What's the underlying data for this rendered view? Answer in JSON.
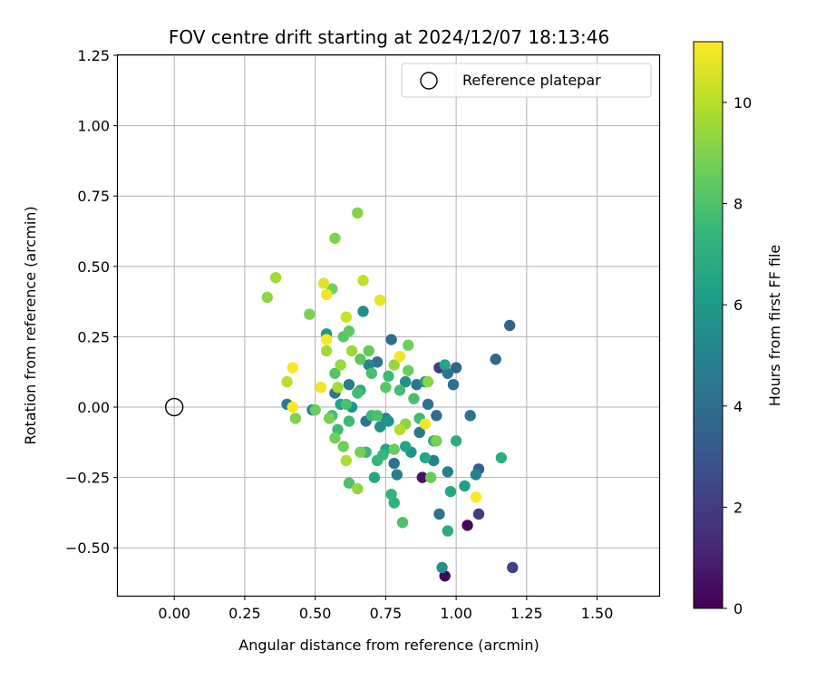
{
  "chart_data": {
    "type": "scatter",
    "title": "FOV centre drift starting at 2024/12/07 18:13:46",
    "xlabel": "Angular distance from reference (arcmin)",
    "ylabel": "Rotation from reference (arcmin)",
    "xlim": [
      -0.2,
      1.72
    ],
    "ylim": [
      -0.67,
      1.25
    ],
    "xticks": [
      "0.00",
      "0.25",
      "0.50",
      "0.75",
      "1.00",
      "1.25",
      "1.50"
    ],
    "xtick_values": [
      0,
      0.25,
      0.5,
      0.75,
      1.0,
      1.25,
      1.5
    ],
    "yticks": [
      "−0.50",
      "−0.25",
      "0.00",
      "0.25",
      "0.50",
      "0.75",
      "1.00",
      "1.25"
    ],
    "ytick_values": [
      -0.5,
      -0.25,
      0,
      0.25,
      0.5,
      0.75,
      1.0,
      1.25
    ],
    "grid": true,
    "legend": {
      "placement": "top-right",
      "entries": [
        "Reference platepar"
      ]
    },
    "reference": {
      "x": 0.0,
      "y": 0.0
    },
    "colorbar": {
      "label": "Hours from first FF file",
      "range": [
        0,
        11.2
      ],
      "ticks": [
        "0",
        "2",
        "4",
        "6",
        "8",
        "10"
      ],
      "tick_values": [
        0,
        2,
        4,
        6,
        8,
        10
      ],
      "colormap": [
        "#440154",
        "#482878",
        "#3e4989",
        "#31688e",
        "#26828e",
        "#1f9e89",
        "#35b779",
        "#6ece58",
        "#b5de2b",
        "#fde725"
      ]
    },
    "series": [
      {
        "points": [
          {
            "x": 0.96,
            "y": -0.6,
            "t": 0.2
          },
          {
            "x": 1.04,
            "y": -0.42,
            "t": 0.3
          },
          {
            "x": 0.88,
            "y": -0.25,
            "t": 0.5
          },
          {
            "x": 1.2,
            "y": -0.57,
            "t": 2.2
          },
          {
            "x": 1.08,
            "y": -0.38,
            "t": 2.0
          },
          {
            "x": 0.94,
            "y": 0.14,
            "t": 2.0
          },
          {
            "x": 1.08,
            "y": -0.22,
            "t": 3.4
          },
          {
            "x": 1.19,
            "y": 0.29,
            "t": 3.6
          },
          {
            "x": 1.14,
            "y": 0.17,
            "t": 3.7
          },
          {
            "x": 1.0,
            "y": 0.14,
            "t": 3.6
          },
          {
            "x": 0.99,
            "y": 0.08,
            "t": 4.0
          },
          {
            "x": 1.05,
            "y": -0.03,
            "t": 4.2
          },
          {
            "x": 0.94,
            "y": -0.38,
            "t": 4.2
          },
          {
            "x": 0.97,
            "y": 0.12,
            "t": 4.3
          },
          {
            "x": 0.9,
            "y": 0.01,
            "t": 4.2
          },
          {
            "x": 0.93,
            "y": -0.03,
            "t": 4.0
          },
          {
            "x": 0.87,
            "y": -0.09,
            "t": 4.5
          },
          {
            "x": 0.78,
            "y": -0.2,
            "t": 4.3
          },
          {
            "x": 0.77,
            "y": 0.24,
            "t": 4.0
          },
          {
            "x": 0.72,
            "y": 0.16,
            "t": 4.1
          },
          {
            "x": 0.62,
            "y": 0.08,
            "t": 4.6
          },
          {
            "x": 0.57,
            "y": 0.05,
            "t": 4.5
          },
          {
            "x": 0.4,
            "y": 0.01,
            "t": 4.6
          },
          {
            "x": 0.49,
            "y": -0.01,
            "t": 4.7
          },
          {
            "x": 0.68,
            "y": -0.05,
            "t": 4.3
          },
          {
            "x": 0.75,
            "y": -0.04,
            "t": 4.8
          },
          {
            "x": 0.86,
            "y": 0.08,
            "t": 4.5
          },
          {
            "x": 0.97,
            "y": -0.23,
            "t": 4.9
          },
          {
            "x": 1.07,
            "y": -0.24,
            "t": 5.0
          },
          {
            "x": 0.79,
            "y": -0.24,
            "t": 4.8
          },
          {
            "x": 0.69,
            "y": 0.15,
            "t": 5.2
          },
          {
            "x": 0.67,
            "y": 0.34,
            "t": 5.5
          },
          {
            "x": 0.92,
            "y": -0.19,
            "t": 5.0
          },
          {
            "x": 0.95,
            "y": -0.57,
            "t": 5.6
          },
          {
            "x": 0.82,
            "y": 0.09,
            "t": 5.4
          },
          {
            "x": 0.73,
            "y": -0.07,
            "t": 5.6
          },
          {
            "x": 0.63,
            "y": 0.0,
            "t": 5.8
          },
          {
            "x": 0.84,
            "y": -0.16,
            "t": 5.7
          },
          {
            "x": 0.76,
            "y": -0.05,
            "t": 5.9
          },
          {
            "x": 0.54,
            "y": 0.26,
            "t": 6.0
          },
          {
            "x": 0.89,
            "y": 0.09,
            "t": 6.0
          },
          {
            "x": 1.03,
            "y": -0.28,
            "t": 6.3
          },
          {
            "x": 0.96,
            "y": 0.15,
            "t": 6.5
          },
          {
            "x": 0.71,
            "y": -0.25,
            "t": 6.6
          },
          {
            "x": 0.75,
            "y": -0.15,
            "t": 6.5
          },
          {
            "x": 0.82,
            "y": -0.14,
            "t": 6.5
          },
          {
            "x": 0.66,
            "y": 0.06,
            "t": 6.8
          },
          {
            "x": 0.89,
            "y": -0.18,
            "t": 6.6
          },
          {
            "x": 0.59,
            "y": 0.01,
            "t": 6.4
          },
          {
            "x": 0.98,
            "y": -0.3,
            "t": 6.7
          },
          {
            "x": 0.97,
            "y": -0.44,
            "t": 6.8
          },
          {
            "x": 1.16,
            "y": -0.18,
            "t": 6.9
          },
          {
            "x": 1.0,
            "y": -0.12,
            "t": 7.0
          },
          {
            "x": 0.92,
            "y": -0.12,
            "t": 7.1
          },
          {
            "x": 0.78,
            "y": -0.34,
            "t": 7.2
          },
          {
            "x": 0.77,
            "y": -0.31,
            "t": 7.3
          },
          {
            "x": 0.72,
            "y": -0.19,
            "t": 7.4
          },
          {
            "x": 0.74,
            "y": -0.17,
            "t": 7.5
          },
          {
            "x": 0.68,
            "y": -0.16,
            "t": 7.5
          },
          {
            "x": 0.7,
            "y": -0.03,
            "t": 7.6
          },
          {
            "x": 0.62,
            "y": -0.05,
            "t": 7.6
          },
          {
            "x": 0.58,
            "y": -0.08,
            "t": 7.7
          },
          {
            "x": 0.56,
            "y": -0.03,
            "t": 7.8
          },
          {
            "x": 0.61,
            "y": 0.01,
            "t": 7.9
          },
          {
            "x": 0.65,
            "y": 0.05,
            "t": 7.8
          },
          {
            "x": 0.7,
            "y": 0.12,
            "t": 7.9
          },
          {
            "x": 0.76,
            "y": 0.11,
            "t": 7.7
          },
          {
            "x": 0.8,
            "y": 0.06,
            "t": 7.8
          },
          {
            "x": 0.85,
            "y": 0.03,
            "t": 7.9
          },
          {
            "x": 0.87,
            "y": -0.04,
            "t": 7.6
          },
          {
            "x": 0.81,
            "y": -0.41,
            "t": 8.0
          },
          {
            "x": 0.62,
            "y": -0.27,
            "t": 8.0
          },
          {
            "x": 0.72,
            "y": -0.03,
            "t": 8.0
          },
          {
            "x": 0.52,
            "y": 0.07,
            "t": 8.2
          },
          {
            "x": 0.57,
            "y": 0.12,
            "t": 8.1
          },
          {
            "x": 0.6,
            "y": 0.25,
            "t": 8.2
          },
          {
            "x": 0.62,
            "y": 0.27,
            "t": 8.4
          },
          {
            "x": 0.66,
            "y": 0.17,
            "t": 8.3
          },
          {
            "x": 0.69,
            "y": 0.2,
            "t": 8.5
          },
          {
            "x": 0.75,
            "y": 0.07,
            "t": 8.3
          },
          {
            "x": 0.83,
            "y": 0.13,
            "t": 8.6
          },
          {
            "x": 0.83,
            "y": 0.22,
            "t": 8.7
          },
          {
            "x": 0.91,
            "y": -0.25,
            "t": 8.5
          },
          {
            "x": 0.93,
            "y": -0.12,
            "t": 8.9
          },
          {
            "x": 0.78,
            "y": -0.15,
            "t": 8.6
          },
          {
            "x": 0.66,
            "y": -0.16,
            "t": 8.8
          },
          {
            "x": 0.6,
            "y": -0.14,
            "t": 8.7
          },
          {
            "x": 0.55,
            "y": -0.04,
            "t": 8.9
          },
          {
            "x": 0.57,
            "y": -0.11,
            "t": 8.8
          },
          {
            "x": 0.5,
            "y": -0.01,
            "t": 8.6
          },
          {
            "x": 0.43,
            "y": -0.04,
            "t": 9.0
          },
          {
            "x": 0.48,
            "y": 0.33,
            "t": 8.9
          },
          {
            "x": 0.56,
            "y": 0.42,
            "t": 8.8
          },
          {
            "x": 0.57,
            "y": 0.6,
            "t": 9.0
          },
          {
            "x": 0.65,
            "y": 0.69,
            "t": 9.1
          },
          {
            "x": 0.33,
            "y": 0.39,
            "t": 9.3
          },
          {
            "x": 0.36,
            "y": 0.46,
            "t": 9.6
          },
          {
            "x": 0.65,
            "y": -0.29,
            "t": 9.3
          },
          {
            "x": 0.82,
            "y": -0.06,
            "t": 9.2
          },
          {
            "x": 0.78,
            "y": 0.15,
            "t": 9.4
          },
          {
            "x": 0.9,
            "y": 0.09,
            "t": 9.2
          },
          {
            "x": 0.63,
            "y": 0.2,
            "t": 9.5
          },
          {
            "x": 0.58,
            "y": 0.07,
            "t": 9.7
          },
          {
            "x": 0.54,
            "y": 0.2,
            "t": 9.6
          },
          {
            "x": 0.59,
            "y": 0.15,
            "t": 9.5
          },
          {
            "x": 0.61,
            "y": -0.19,
            "t": 9.8
          },
          {
            "x": 0.8,
            "y": -0.08,
            "t": 9.9
          },
          {
            "x": 0.4,
            "y": 0.09,
            "t": 10.0
          },
          {
            "x": 0.67,
            "y": 0.45,
            "t": 10.1
          },
          {
            "x": 0.61,
            "y": 0.32,
            "t": 10.3
          },
          {
            "x": 0.53,
            "y": 0.44,
            "t": 10.7
          },
          {
            "x": 0.54,
            "y": 0.4,
            "t": 11.0
          },
          {
            "x": 0.73,
            "y": 0.38,
            "t": 10.8
          },
          {
            "x": 0.8,
            "y": 0.18,
            "t": 11.0
          },
          {
            "x": 0.42,
            "y": 0.14,
            "t": 11.1
          },
          {
            "x": 0.42,
            "y": 0.0,
            "t": 11.2
          },
          {
            "x": 0.52,
            "y": 0.07,
            "t": 11.0
          },
          {
            "x": 0.54,
            "y": 0.24,
            "t": 11.1
          },
          {
            "x": 0.89,
            "y": -0.06,
            "t": 11.0
          },
          {
            "x": 1.07,
            "y": -0.32,
            "t": 11.2
          }
        ]
      }
    ]
  }
}
